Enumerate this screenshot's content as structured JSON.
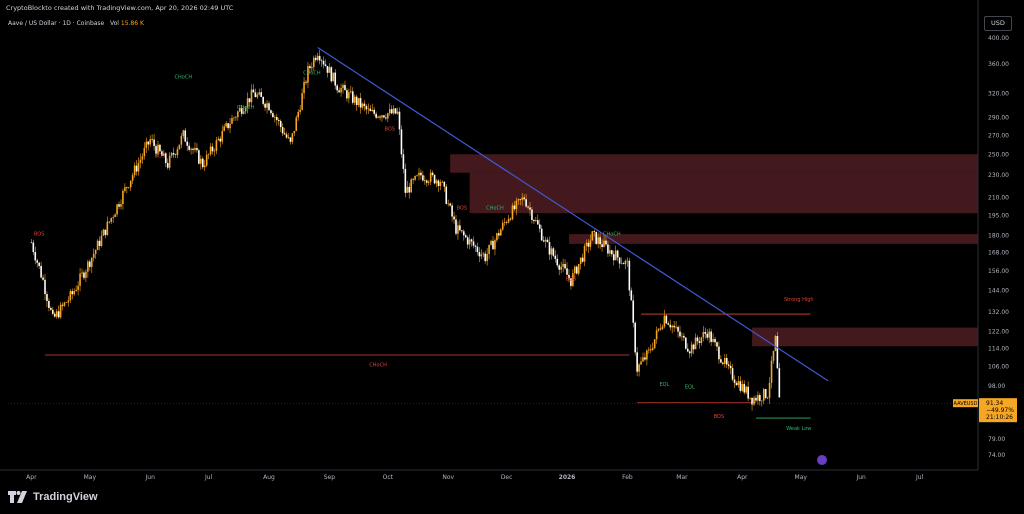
{
  "header": {
    "credit": "CryptoBlockto created with TradingView.com, Apr 20, 2026 02:49 UTC",
    "symbol_line": "Aave / US Dollar · 1D · Coinbase",
    "vol_label": "Vol",
    "vol_value": "15.86 K"
  },
  "currency_button": "USD",
  "brand": "TradingView",
  "price_box": {
    "symbol": "AAVEUSD",
    "price": "91.34",
    "change": "−49.97%",
    "countdown": "21:10:26"
  },
  "colors": {
    "background": "#000000",
    "candle": "#f5a623",
    "trendline": "#3f5ad8",
    "zone": "#5a2227",
    "bearish_label": "#e0443a",
    "bullish_label": "#33b36b",
    "axis_text": "#b2b5be"
  },
  "annotations": {
    "choch": "CHoCH",
    "bos": "BOS",
    "strong_high": "Strong High",
    "weak_low": "Weak Low",
    "eql": "EQL"
  },
  "chart_data": {
    "type": "candlestick",
    "title": "Aave / US Dollar · 1D · Coinbase",
    "scale": "log",
    "ylim": [
      72,
      410
    ],
    "y_ticks": [
      400,
      360,
      320,
      290,
      270,
      250,
      230,
      210,
      195,
      180,
      168,
      156,
      144,
      132,
      122,
      114,
      106,
      98,
      79,
      74
    ],
    "x_tick_labels": [
      "Apr",
      "May",
      "Jun",
      "Jul",
      "Aug",
      "Sep",
      "Oct",
      "Nov",
      "Dec",
      "2026",
      "Feb",
      "Mar",
      "Apr",
      "May",
      "Jun",
      "Jul"
    ],
    "grid": false,
    "last_price": 91.34,
    "change_pct": -49.97,
    "price_path": [
      [
        "2025-04-01",
        175
      ],
      [
        "2025-04-07",
        150
      ],
      [
        "2025-04-12",
        128
      ],
      [
        "2025-04-22",
        142
      ],
      [
        "2025-05-04",
        170
      ],
      [
        "2025-05-20",
        220
      ],
      [
        "2025-06-01",
        265
      ],
      [
        "2025-06-10",
        240
      ],
      [
        "2025-06-18",
        270
      ],
      [
        "2025-06-28",
        240
      ],
      [
        "2025-07-12",
        285
      ],
      [
        "2025-07-24",
        320
      ],
      [
        "2025-08-01",
        305
      ],
      [
        "2025-08-12",
        260
      ],
      [
        "2025-08-21",
        350
      ],
      [
        "2025-08-26",
        380
      ],
      [
        "2025-09-05",
        330
      ],
      [
        "2025-09-22",
        295
      ],
      [
        "2025-10-06",
        295
      ],
      [
        "2025-10-10",
        215
      ],
      [
        "2025-10-18",
        230
      ],
      [
        "2025-10-28",
        225
      ],
      [
        "2025-11-05",
        185
      ],
      [
        "2025-11-20",
        165
      ],
      [
        "2025-12-02",
        195
      ],
      [
        "2025-12-10",
        210
      ],
      [
        "2025-12-22",
        172
      ],
      [
        "2026-01-03",
        150
      ],
      [
        "2026-01-14",
        180
      ],
      [
        "2026-01-24",
        168
      ],
      [
        "2026-02-01",
        160
      ],
      [
        "2026-02-06",
        105
      ],
      [
        "2026-02-12",
        112
      ],
      [
        "2026-02-20",
        130
      ],
      [
        "2026-03-05",
        114
      ],
      [
        "2026-03-14",
        122
      ],
      [
        "2026-03-25",
        104
      ],
      [
        "2026-04-06",
        93
      ],
      [
        "2026-04-14",
        95
      ],
      [
        "2026-04-18",
        118
      ],
      [
        "2026-04-20",
        91.34
      ]
    ],
    "trendline": {
      "from": [
        "2025-08-26",
        385
      ],
      "to": [
        "2026-05-15",
        100
      ]
    },
    "supply_zones": [
      {
        "from": "2025-11-02",
        "to": "2026-07-31",
        "low": 232,
        "high": 250
      },
      {
        "from": "2025-11-12",
        "to": "2026-07-31",
        "low": 197,
        "high": 232
      },
      {
        "from": "2026-01-02",
        "to": "2026-07-31",
        "low": 174,
        "high": 181
      },
      {
        "from": "2026-04-06",
        "to": "2026-07-31",
        "low": 115,
        "high": 124
      }
    ],
    "levels": [
      {
        "label": "CHoCH",
        "price": 111,
        "from": "2025-04-08",
        "to": "2026-02-02",
        "color": "bearish"
      },
      {
        "label": "BOS",
        "price": 91.5,
        "from": "2026-02-06",
        "to": "2026-04-08",
        "color": "bearish"
      },
      {
        "label": "Strong High",
        "price": 131,
        "from": "2026-02-08",
        "to": "2026-05-06",
        "color": "bearish"
      },
      {
        "label": "Weak Low",
        "price": 86,
        "from": "2026-04-08",
        "to": "2026-05-06",
        "color": "bullish"
      }
    ]
  }
}
